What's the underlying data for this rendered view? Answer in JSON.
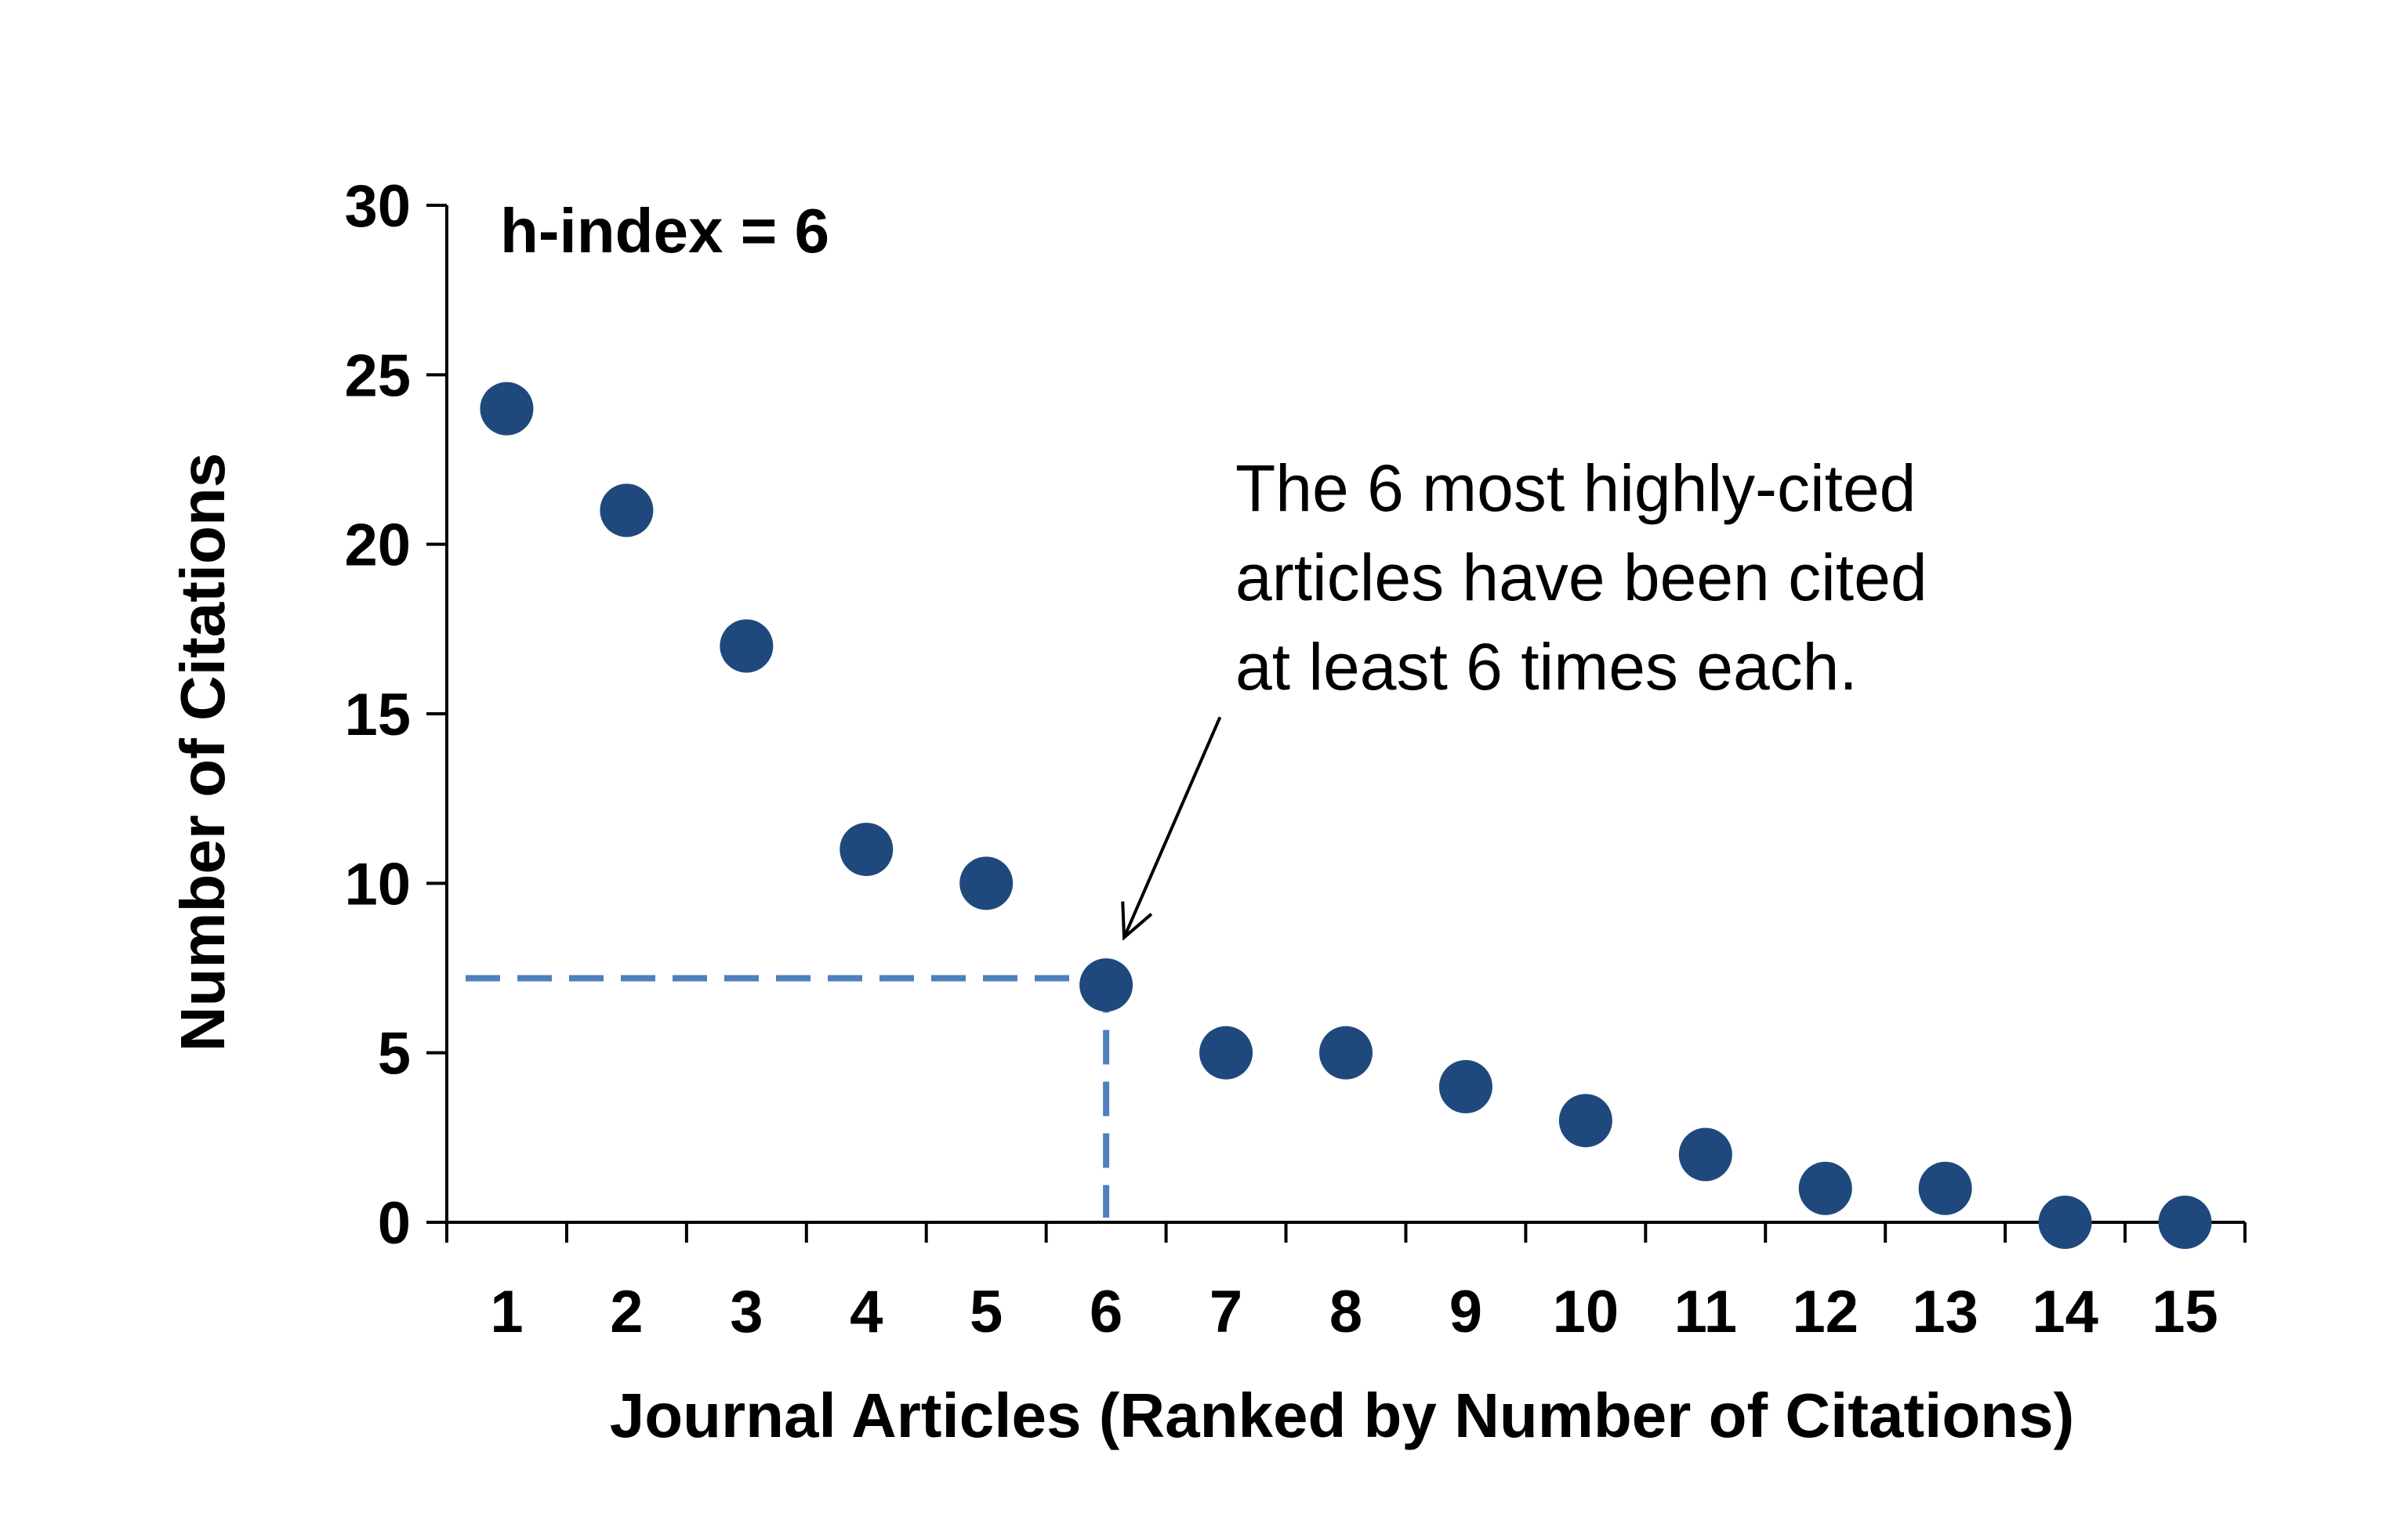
{
  "chart_data": {
    "type": "scatter",
    "annotation_label": "h-index = 6",
    "xlabel": "Journal Articles (Ranked by Number of Citations)",
    "ylabel": "Number of Citations",
    "xlim": [
      0.5,
      15.5
    ],
    "ylim": [
      0,
      30
    ],
    "y_ticks": [
      0,
      5,
      10,
      15,
      20,
      25,
      30
    ],
    "x_ticks": [
      1,
      2,
      3,
      4,
      5,
      6,
      7,
      8,
      9,
      10,
      11,
      12,
      13,
      14,
      15
    ],
    "x": [
      1,
      2,
      3,
      4,
      5,
      6,
      7,
      8,
      9,
      10,
      11,
      12,
      13,
      14,
      15
    ],
    "y": [
      24,
      21,
      17,
      11,
      10,
      7,
      5,
      5,
      4,
      3,
      2,
      1,
      1,
      0,
      0
    ],
    "point_color": "#1f497d",
    "guide_color": "#4f7fbd",
    "h_index": 6,
    "guide_y": 7.2,
    "callout": {
      "lines": [
        "The 6 most highly-cited",
        "articles have been cited",
        "at least 6 times each."
      ],
      "arrow_target": [
        6.15,
        8.4
      ],
      "arrow_start": [
        6.95,
        14.9
      ]
    }
  }
}
